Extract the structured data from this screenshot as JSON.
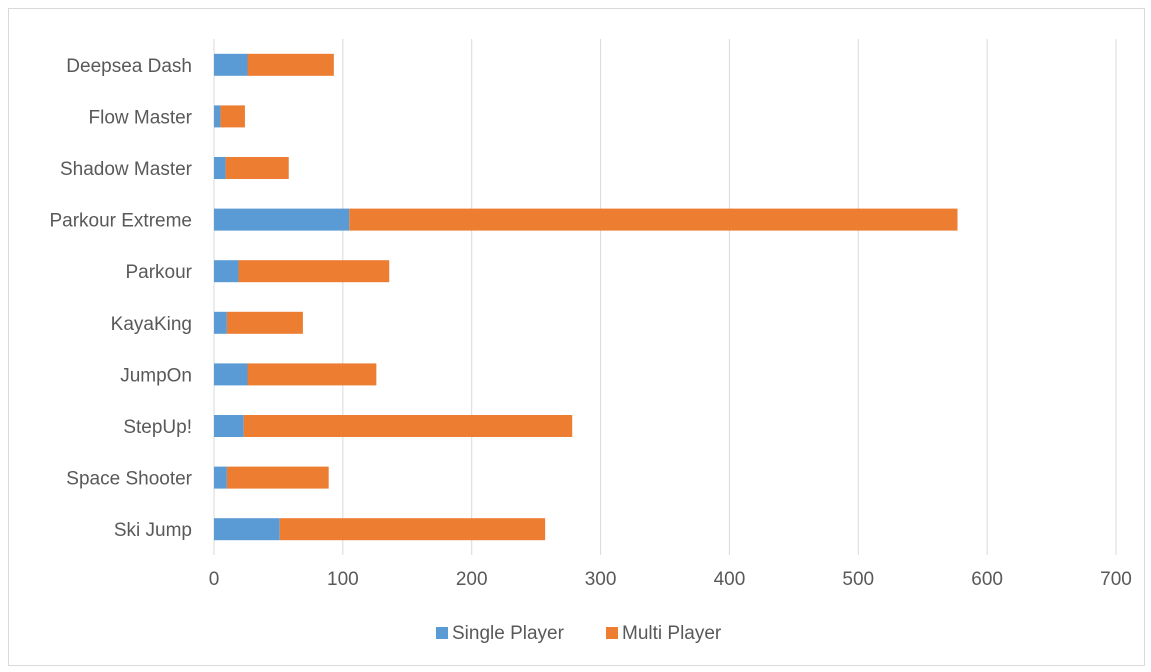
{
  "chart_data": {
    "type": "bar",
    "orientation": "horizontal",
    "stacked": true,
    "categories": [
      "Ski Jump",
      "Space Shooter",
      "StepUp!",
      "JumpOn",
      "KayaKing",
      "Parkour",
      "Parkour Extreme",
      "Shadow Master",
      "Flow Master",
      "Deepsea Dash"
    ],
    "series": [
      {
        "name": "Single Player",
        "color": "#5b9bd5",
        "values": [
          51,
          10,
          23,
          26,
          10,
          19,
          105,
          9,
          5,
          26
        ]
      },
      {
        "name": "Multi Player",
        "color": "#ed7d31",
        "values": [
          206,
          79,
          255,
          100,
          59,
          117,
          472,
          49,
          19,
          67
        ]
      }
    ],
    "xlim": [
      0,
      700
    ],
    "xticks": [
      "0",
      "100",
      "200",
      "300",
      "400",
      "500",
      "600",
      "700"
    ],
    "grid": true,
    "legend_position": "bottom"
  }
}
